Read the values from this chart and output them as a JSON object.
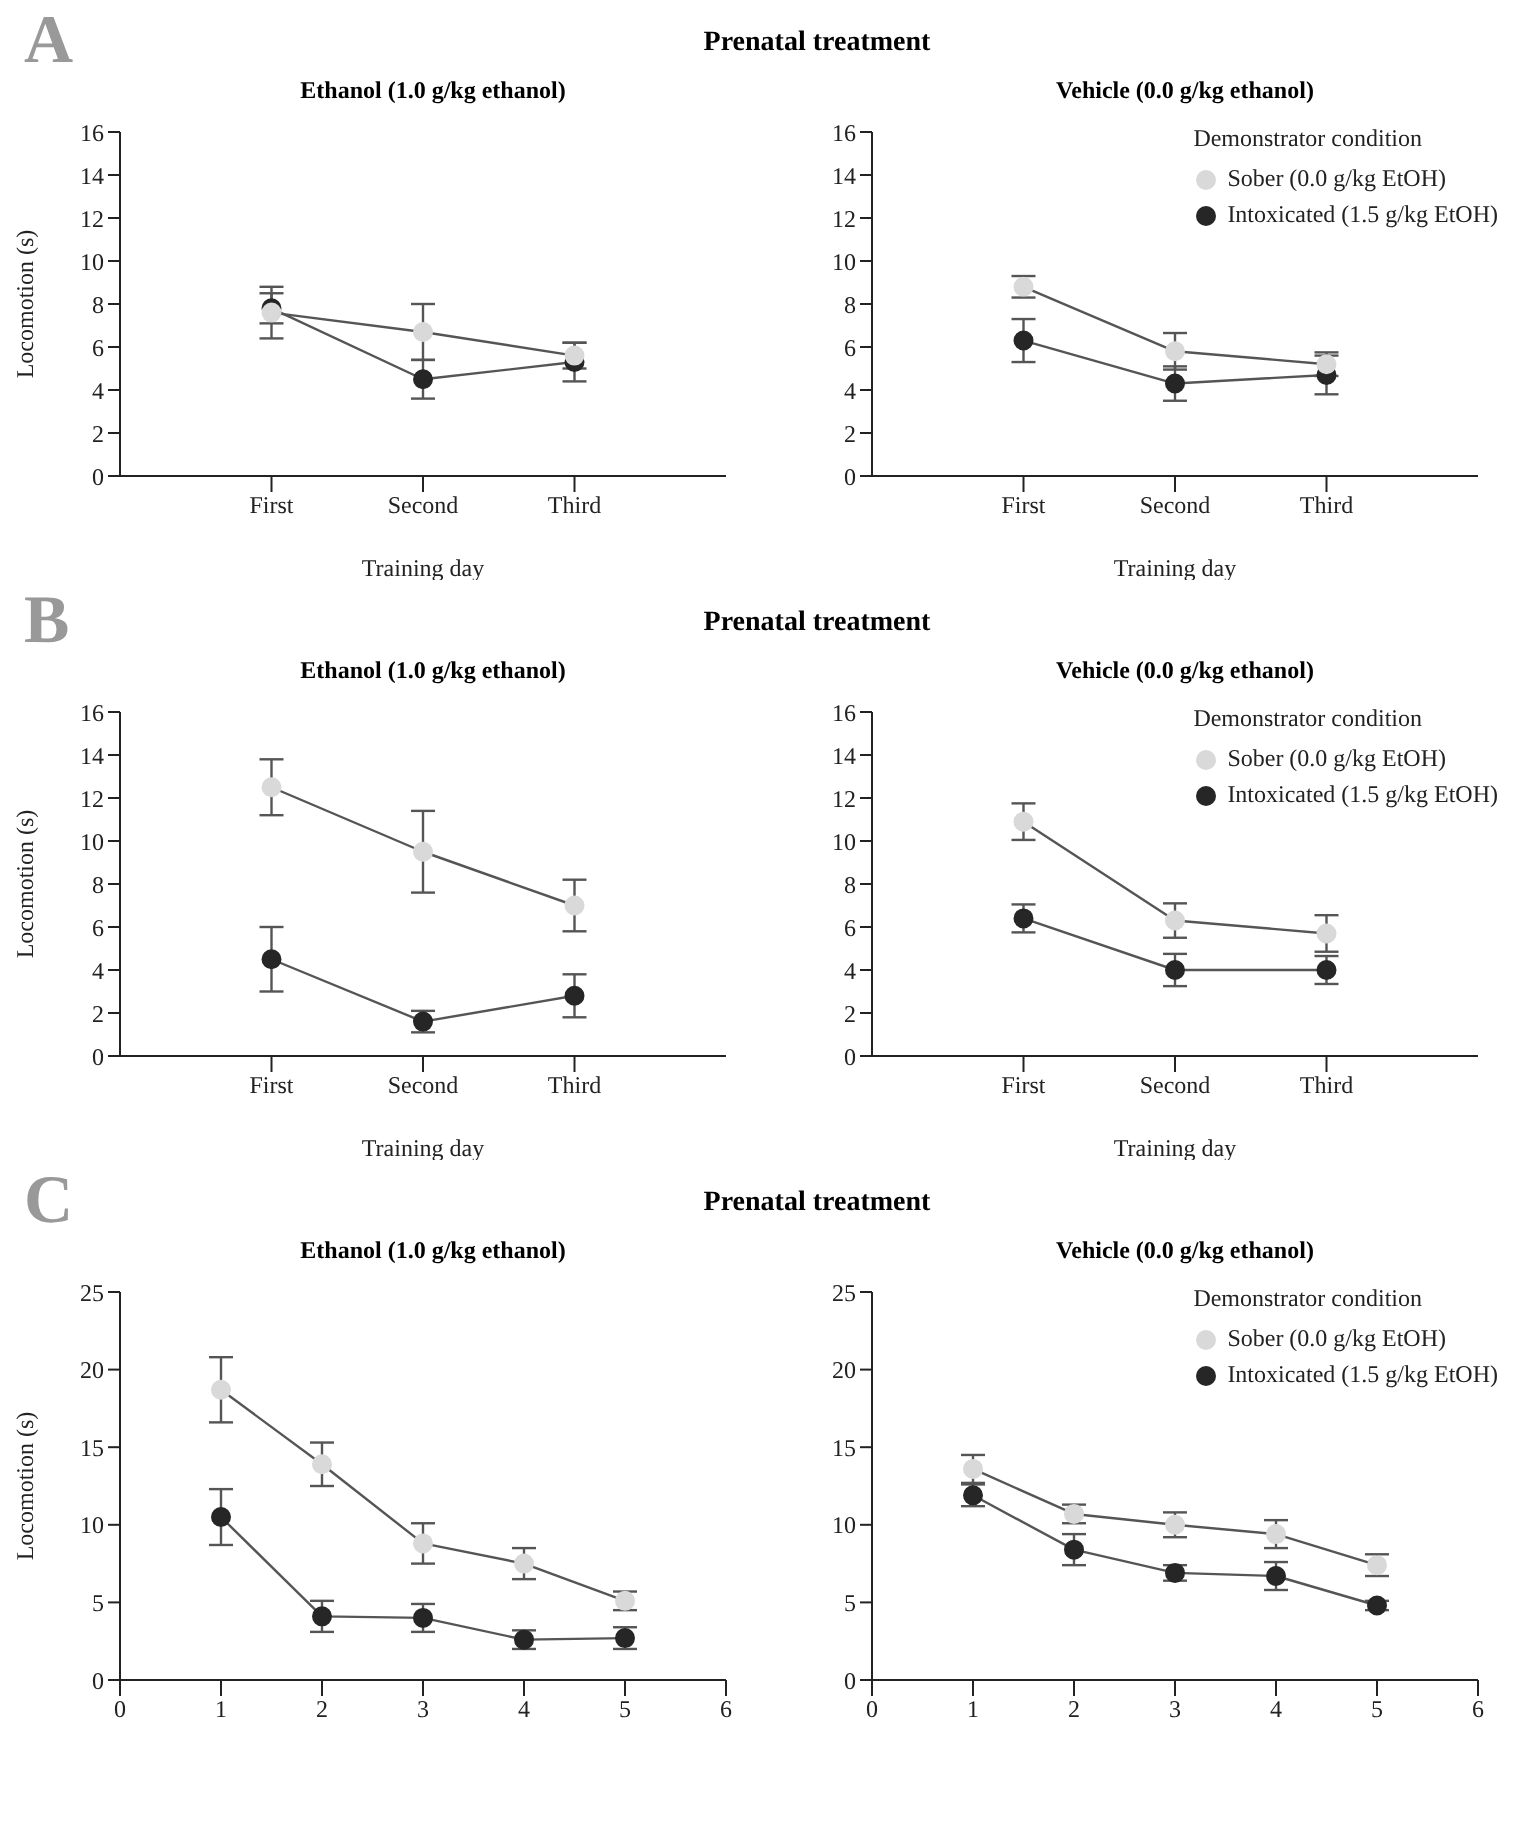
{
  "chart_data": [
    {
      "type": "line",
      "annotations": [
        "A",
        "Prenatal treatment"
      ],
      "title": "Ethanol (1.0 g/kg ethanol)",
      "xlabel": "Training day",
      "ylabel": "Locomotion (s)",
      "categories": [
        "First",
        "Second",
        "Third"
      ],
      "ylim": [
        0,
        16
      ],
      "yticks": [
        0,
        2,
        4,
        6,
        8,
        10,
        12,
        14,
        16
      ],
      "marker": "circle",
      "series": [
        {
          "color": "#d9d9d9",
          "values": [
            7.6,
            6.7,
            5.6
          ],
          "errors": [
            1.2,
            1.3,
            0.6
          ]
        },
        {
          "color": "#262626",
          "values": [
            7.8,
            4.5,
            5.3
          ],
          "errors": [
            0.7,
            0.9,
            0.9
          ]
        }
      ]
    },
    {
      "type": "line",
      "title": "Vehicle (0.0 g/kg ethanol)",
      "xlabel": "Training day",
      "categories": [
        "First",
        "Second",
        "Third"
      ],
      "ylim": [
        0,
        16
      ],
      "yticks": [
        0,
        2,
        4,
        6,
        8,
        10,
        12,
        14,
        16
      ],
      "marker": "circle",
      "legend": "top right",
      "legend_title": "Demonstrator condition",
      "series": [
        {
          "name": "Sober (0.0 g/kg EtOH)",
          "color": "#d9d9d9",
          "values": [
            8.8,
            5.8,
            5.2
          ],
          "errors": [
            0.5,
            0.85,
            0.55
          ]
        },
        {
          "name": "Intoxicated (1.5 g/kg EtOH)",
          "color": "#262626",
          "values": [
            6.3,
            4.3,
            4.7
          ],
          "errors": [
            1.0,
            0.8,
            0.9
          ]
        }
      ]
    },
    {
      "type": "line",
      "annotations": [
        "B",
        "Prenatal treatment"
      ],
      "title": "Ethanol (1.0 g/kg ethanol)",
      "xlabel": "Training day",
      "ylabel": "Locomotion (s)",
      "categories": [
        "First",
        "Second",
        "Third"
      ],
      "ylim": [
        0,
        16
      ],
      "yticks": [
        0,
        2,
        4,
        6,
        8,
        10,
        12,
        14,
        16
      ],
      "marker": "circle",
      "series": [
        {
          "color": "#d9d9d9",
          "values": [
            12.5,
            9.5,
            7.0
          ],
          "errors": [
            1.3,
            1.9,
            1.2
          ]
        },
        {
          "color": "#262626",
          "values": [
            4.5,
            1.6,
            2.8
          ],
          "errors": [
            1.5,
            0.5,
            1.0
          ]
        }
      ]
    },
    {
      "type": "line",
      "title": "Vehicle (0.0 g/kg ethanol)",
      "xlabel": "Training day",
      "categories": [
        "First",
        "Second",
        "Third"
      ],
      "ylim": [
        0,
        16
      ],
      "yticks": [
        0,
        2,
        4,
        6,
        8,
        10,
        12,
        14,
        16
      ],
      "marker": "circle",
      "legend": "top right",
      "legend_title": "Demonstrator condition",
      "series": [
        {
          "name": "Sober (0.0 g/kg EtOH)",
          "color": "#d9d9d9",
          "values": [
            10.9,
            6.3,
            5.7
          ],
          "errors": [
            0.85,
            0.8,
            0.85
          ]
        },
        {
          "name": "Intoxicated (1.5 g/kg EtOH)",
          "color": "#262626",
          "values": [
            6.4,
            4.0,
            4.0
          ],
          "errors": [
            0.65,
            0.75,
            0.65
          ]
        }
      ]
    },
    {
      "type": "line",
      "annotations": [
        "C",
        "Prenatal treatment"
      ],
      "title": "Ethanol (1.0 g/kg ethanol)",
      "ylabel": "Locomotion (s)",
      "x": [
        1,
        2,
        3,
        4,
        5
      ],
      "xlim": [
        0,
        6
      ],
      "xticks": [
        0,
        1,
        2,
        3,
        4,
        5,
        6
      ],
      "ylim": [
        0,
        25
      ],
      "yticks": [
        0,
        5,
        10,
        15,
        20,
        25
      ],
      "marker": "circle",
      "series": [
        {
          "color": "#d9d9d9",
          "values": [
            18.7,
            13.9,
            8.8,
            7.5,
            5.1
          ],
          "errors": [
            2.1,
            1.4,
            1.3,
            1.0,
            0.6
          ]
        },
        {
          "color": "#262626",
          "values": [
            10.5,
            4.1,
            4.0,
            2.6,
            2.7
          ],
          "errors": [
            1.8,
            1.0,
            0.9,
            0.6,
            0.7
          ]
        }
      ]
    },
    {
      "type": "line",
      "title": "Vehicle (0.0 g/kg ethanol)",
      "x": [
        1,
        2,
        3,
        4,
        5
      ],
      "xlim": [
        0,
        6
      ],
      "xticks": [
        0,
        1,
        2,
        3,
        4,
        5,
        6
      ],
      "ylim": [
        0,
        25
      ],
      "yticks": [
        0,
        5,
        10,
        15,
        20,
        25
      ],
      "marker": "circle",
      "legend": "top right",
      "legend_title": "Demonstrator condition",
      "series": [
        {
          "name": "Sober (0.0 g/kg EtOH)",
          "color": "#d9d9d9",
          "values": [
            13.6,
            10.7,
            10.0,
            9.4,
            7.4
          ],
          "errors": [
            0.9,
            0.6,
            0.8,
            0.9,
            0.7
          ]
        },
        {
          "name": "Intoxicated (1.5 g/kg EtOH)",
          "color": "#262626",
          "values": [
            11.9,
            8.4,
            6.9,
            6.7,
            4.8
          ],
          "errors": [
            0.7,
            1.0,
            0.5,
            0.9,
            0.3
          ]
        }
      ]
    }
  ]
}
